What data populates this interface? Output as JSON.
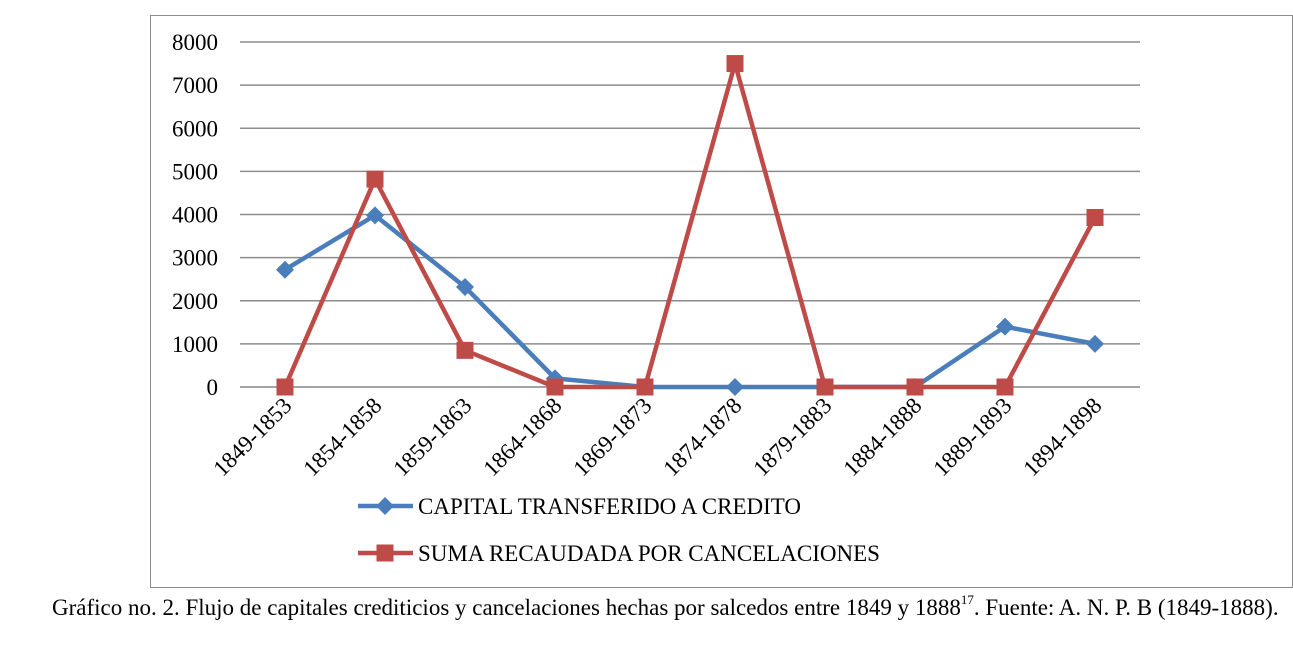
{
  "chart_data": {
    "type": "line",
    "categories": [
      "1849-1853",
      "1854-1858",
      "1859-1863",
      "1864-1868",
      "1869-1873",
      "1874-1878",
      "1879-1883",
      "1884-1888",
      "1889-1893",
      "1894-1898"
    ],
    "series": [
      {
        "name": "CAPITAL TRANSFERIDO A CREDITO",
        "values": [
          2720,
          3980,
          2320,
          200,
          0,
          0,
          0,
          0,
          1400,
          1000
        ],
        "color": "#4a7ebb",
        "marker": "diamond"
      },
      {
        "name": "SUMA RECAUDADA POR CANCELACIONES",
        "values": [
          0,
          4820,
          850,
          0,
          0,
          7500,
          0,
          0,
          0,
          3930
        ],
        "color": "#be4b48",
        "marker": "square"
      }
    ],
    "yticks": [
      0,
      1000,
      2000,
      3000,
      4000,
      5000,
      6000,
      7000,
      8000
    ],
    "ylim": [
      0,
      8000
    ],
    "grid": true,
    "legend_position": "bottom"
  },
  "caption": {
    "text": "Gráfico no. 2. Flujo de capitales crediticios y cancelaciones hechas por salcedos entre 1849 y 1888",
    "footnote": "17",
    "tail": ". Fuente: A. N. P. B (1849-1888)."
  }
}
